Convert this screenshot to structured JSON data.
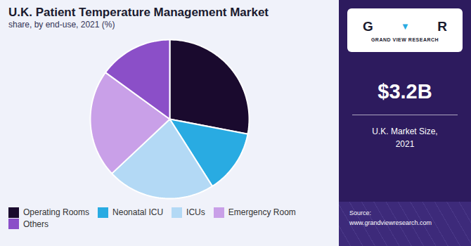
{
  "chart_data": {
    "type": "pie",
    "title": "U.K. Patient Temperature Management Market",
    "subtitle": "share, by end-use, 2021 (%)",
    "categories": [
      "Operating Rooms",
      "Neonatal ICU",
      "ICUs",
      "Emergency Room",
      "Others"
    ],
    "values": [
      28,
      13,
      22,
      22,
      15
    ],
    "colors": [
      "#1a0a2e",
      "#29abe2",
      "#b3d9f5",
      "#c9a0e8",
      "#8b4fc8"
    ],
    "legend": "bottom",
    "annotations": [
      "G",
      "▼",
      "R",
      "GRAND VIEW RESEARCH",
      "$3.2B",
      "U.K. Market Size,\n2021",
      "Source:\nwww.grandviewresearch.com"
    ]
  }
}
